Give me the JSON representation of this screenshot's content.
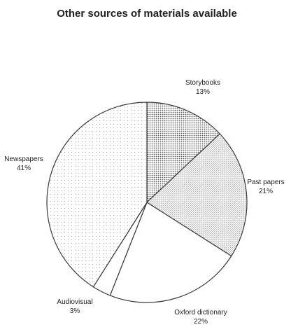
{
  "chart_data": {
    "type": "pie",
    "title": "Other sources of materials available",
    "slices": [
      {
        "label": "Storybooks",
        "value": 13,
        "value_label": "13%",
        "pattern": "dense-dots"
      },
      {
        "label": "Past papers",
        "value": 21,
        "value_label": "21%",
        "pattern": "stipple"
      },
      {
        "label": "Oxford dictionary",
        "value": 22,
        "value_label": "22%",
        "pattern": "blank"
      },
      {
        "label": "Audiovisual",
        "value": 3,
        "value_label": "3%",
        "pattern": "blank"
      },
      {
        "label": "Newspapers",
        "value": 41,
        "value_label": "41%",
        "pattern": "sparse-dots"
      }
    ],
    "start_angle": "12 o'clock",
    "direction": "clockwise",
    "legend": "none"
  },
  "colors": {
    "outline": "#3a3a3a",
    "dot": "#6a6a6a",
    "text": "#222222",
    "background": "#ffffff"
  }
}
